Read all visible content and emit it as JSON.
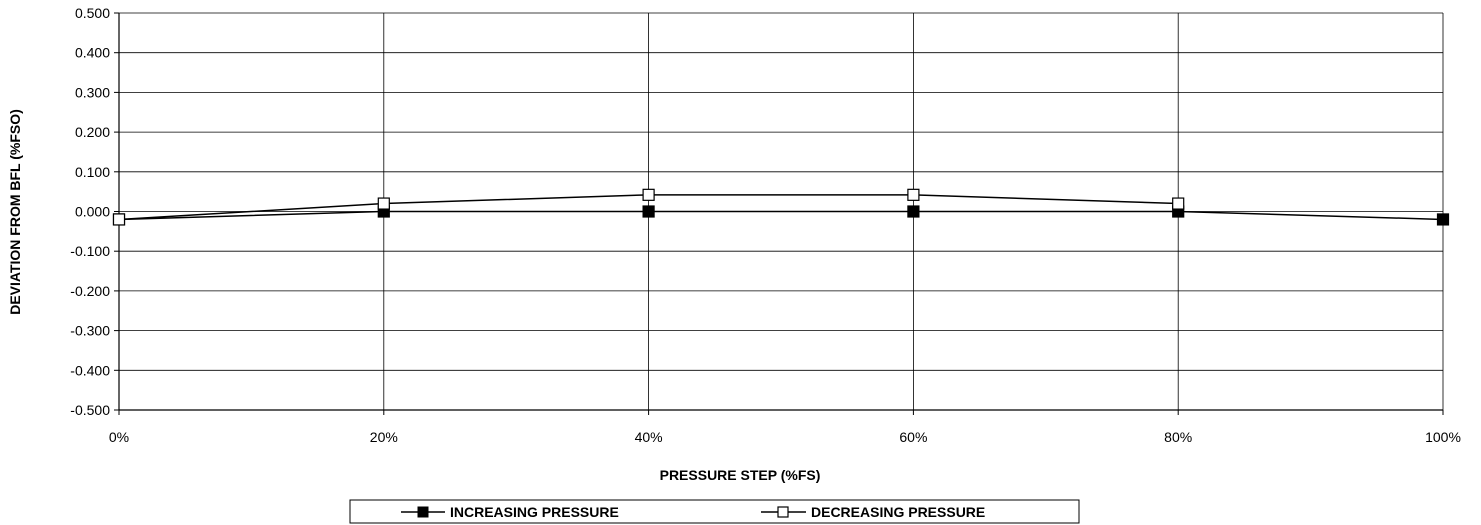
{
  "chart_data": {
    "type": "line",
    "title": "",
    "xlabel": "PRESSURE STEP (%FS)",
    "ylabel": "DEVIATION FROM BFL (%FSO)",
    "x": [
      0,
      20,
      40,
      60,
      80,
      100
    ],
    "x_tick_labels": [
      "0%",
      "20%",
      "40%",
      "60%",
      "80%",
      "100%"
    ],
    "y_tick_labels": [
      "0.500",
      "0.400",
      "0.300",
      "0.200",
      "0.100",
      "0.000",
      "-0.100",
      "-0.200",
      "-0.300",
      "-0.400",
      "-0.500"
    ],
    "xlim": [
      0,
      100
    ],
    "ylim": [
      -0.5,
      0.5
    ],
    "grid": true,
    "legend_position": "bottom",
    "series": [
      {
        "name": "INCREASING PRESSURE",
        "marker": "filled-square",
        "values": [
          -0.02,
          0.0,
          0.0,
          0.0,
          0.0,
          -0.02
        ]
      },
      {
        "name": "DECREASING PRESSURE",
        "marker": "open-square",
        "values": [
          -0.02,
          0.02,
          0.042,
          0.042,
          0.02,
          null
        ]
      }
    ],
    "colors": {
      "line": "#000000",
      "grid": "#000000",
      "background": "#ffffff"
    }
  }
}
